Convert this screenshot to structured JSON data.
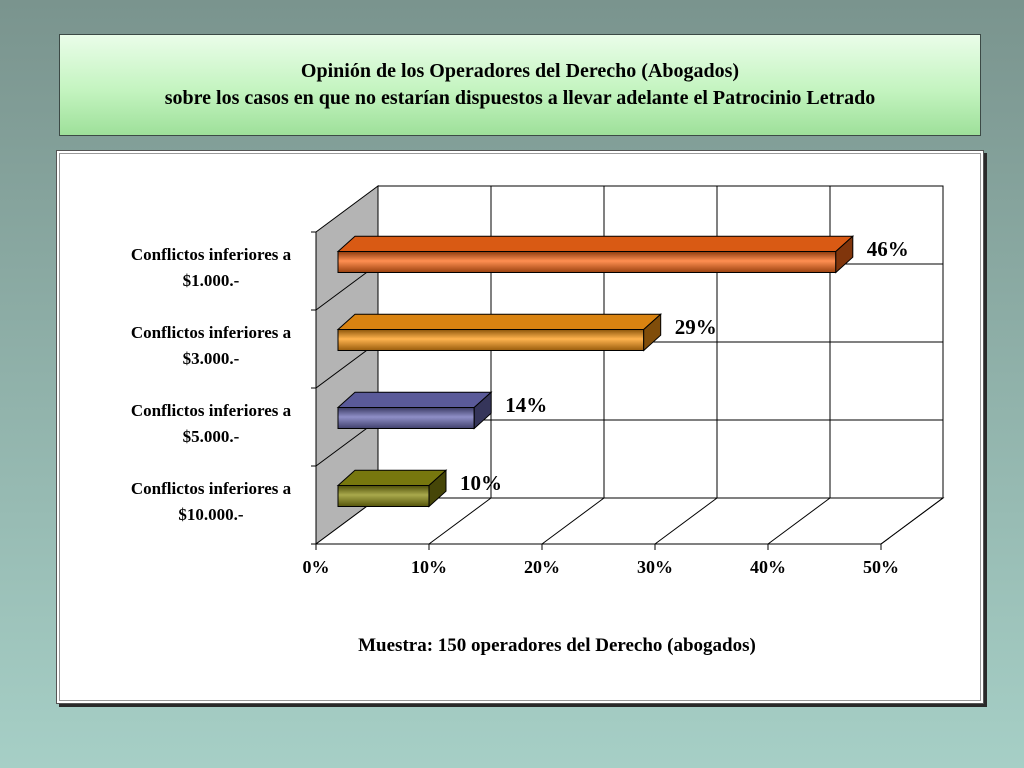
{
  "slide": {
    "title_line1": "Opinión de los Operadores del Derecho (Abogados)",
    "title_line2": "sobre los casos en que no estarían dispuestos a llevar adelante el Patrocinio Letrado"
  },
  "chart_data": {
    "type": "bar",
    "orientation": "horizontal",
    "three_d": true,
    "categories": [
      [
        "Conflictos inferiores a",
        "$1.000.-"
      ],
      [
        "Conflictos inferiores a",
        "$3.000.-"
      ],
      [
        "Conflictos inferiores a",
        "$5.000.-"
      ],
      [
        "Conflictos inferiores a",
        "$10.000.-"
      ]
    ],
    "values": [
      46,
      29,
      14,
      10
    ],
    "value_labels": [
      "46%",
      "29%",
      "14%",
      "10%"
    ],
    "bar_colors": [
      "#ff6a18",
      "#ff9a14",
      "#6a6ab4",
      "#8c8c10"
    ],
    "xlim": [
      0,
      50
    ],
    "xticks": [
      0,
      10,
      20,
      30,
      40,
      50
    ],
    "xtick_labels": [
      "0%",
      "10%",
      "20%",
      "30%",
      "40%",
      "50%"
    ],
    "grid": true,
    "note": "Muestra: 150 operadores del Derecho (abogados)"
  }
}
